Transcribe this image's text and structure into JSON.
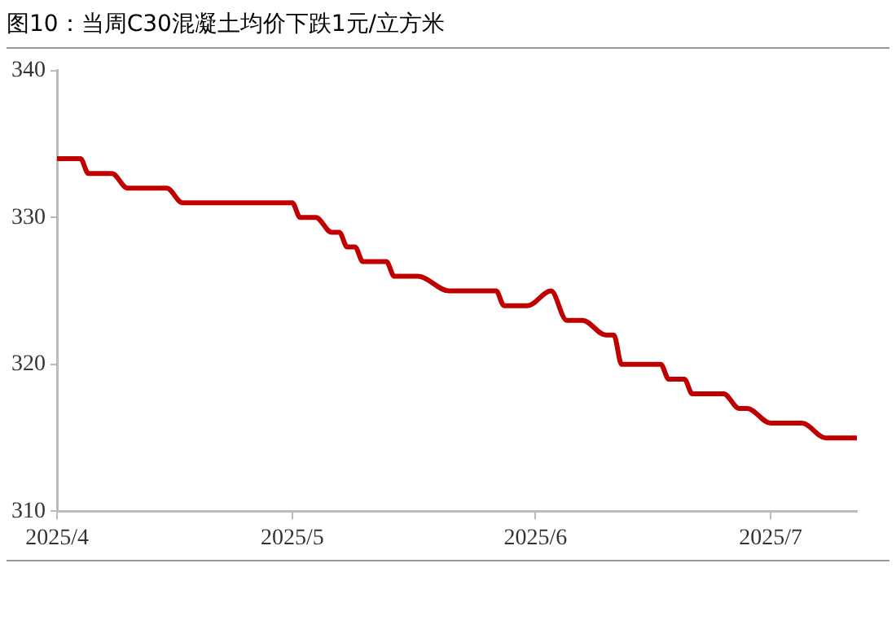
{
  "chart_data": {
    "type": "line",
    "title": "图10：当周C30混凝土均价下跌1元/立方米",
    "series": [
      {
        "color": "#c00000",
        "x": [
          "2025-04-01",
          "2025-04-04",
          "2025-04-05",
          "2025-04-08",
          "2025-04-10",
          "2025-04-15",
          "2025-04-17",
          "2025-05-01",
          "2025-05-02",
          "2025-05-04",
          "2025-05-06",
          "2025-05-07",
          "2025-05-08",
          "2025-05-09",
          "2025-05-10",
          "2025-05-13",
          "2025-05-14",
          "2025-05-17",
          "2025-05-21",
          "2025-05-27",
          "2025-05-28",
          "2025-05-31",
          "2025-06-03",
          "2025-06-05",
          "2025-06-07",
          "2025-06-10",
          "2025-06-11",
          "2025-06-12",
          "2025-06-17",
          "2025-06-18",
          "2025-06-20",
          "2025-06-21",
          "2025-06-25",
          "2025-06-27",
          "2025-06-28",
          "2025-07-01",
          "2025-07-05",
          "2025-07-08",
          "2025-07-12"
        ],
        "values": [
          334,
          334,
          333,
          333,
          332,
          332,
          331,
          331,
          330,
          330,
          329,
          329,
          328,
          328,
          327,
          327,
          326,
          326,
          325,
          325,
          324,
          324,
          325,
          323,
          323,
          322,
          322,
          320,
          320,
          319,
          319,
          318,
          318,
          317,
          317,
          316,
          316,
          315,
          315
        ]
      }
    ],
    "xlim": [
      "2025-04-01",
      "2025-07-12"
    ],
    "xticks": [
      {
        "value": "2025-04-01",
        "label": "2025/4"
      },
      {
        "value": "2025-05-01",
        "label": "2025/5"
      },
      {
        "value": "2025-06-01",
        "label": "2025/6"
      },
      {
        "value": "2025-07-01",
        "label": "2025/7"
      }
    ],
    "ylim": [
      310,
      340
    ],
    "yticks": [
      310,
      320,
      330,
      340
    ],
    "grid": false,
    "legend": false,
    "marker": "none",
    "line_style": "solid"
  }
}
